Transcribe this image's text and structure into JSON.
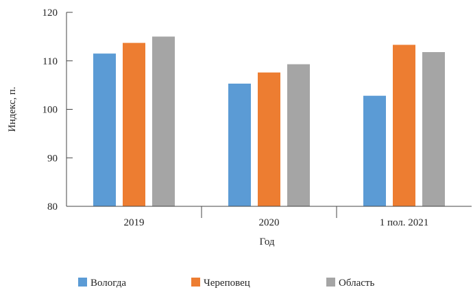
{
  "chart_data": {
    "type": "bar",
    "title": "",
    "xlabel": "Год",
    "ylabel": "Индекс, п.",
    "categories": [
      "2019",
      "2020",
      "1 пол. 2021"
    ],
    "ylim": [
      80,
      120
    ],
    "yticks": [
      80,
      90,
      100,
      110,
      120
    ],
    "grid": false,
    "legend_position": "bottom",
    "series": [
      {
        "name": "Вологда",
        "color": "#5B9BD5",
        "values": [
          111.5,
          105.3,
          102.8
        ]
      },
      {
        "name": "Череповец",
        "color": "#ED7D31",
        "values": [
          113.7,
          107.6,
          113.3
        ]
      },
      {
        "name": "Область",
        "color": "#A5A5A5",
        "values": [
          115.0,
          109.3,
          111.8
        ]
      }
    ]
  }
}
